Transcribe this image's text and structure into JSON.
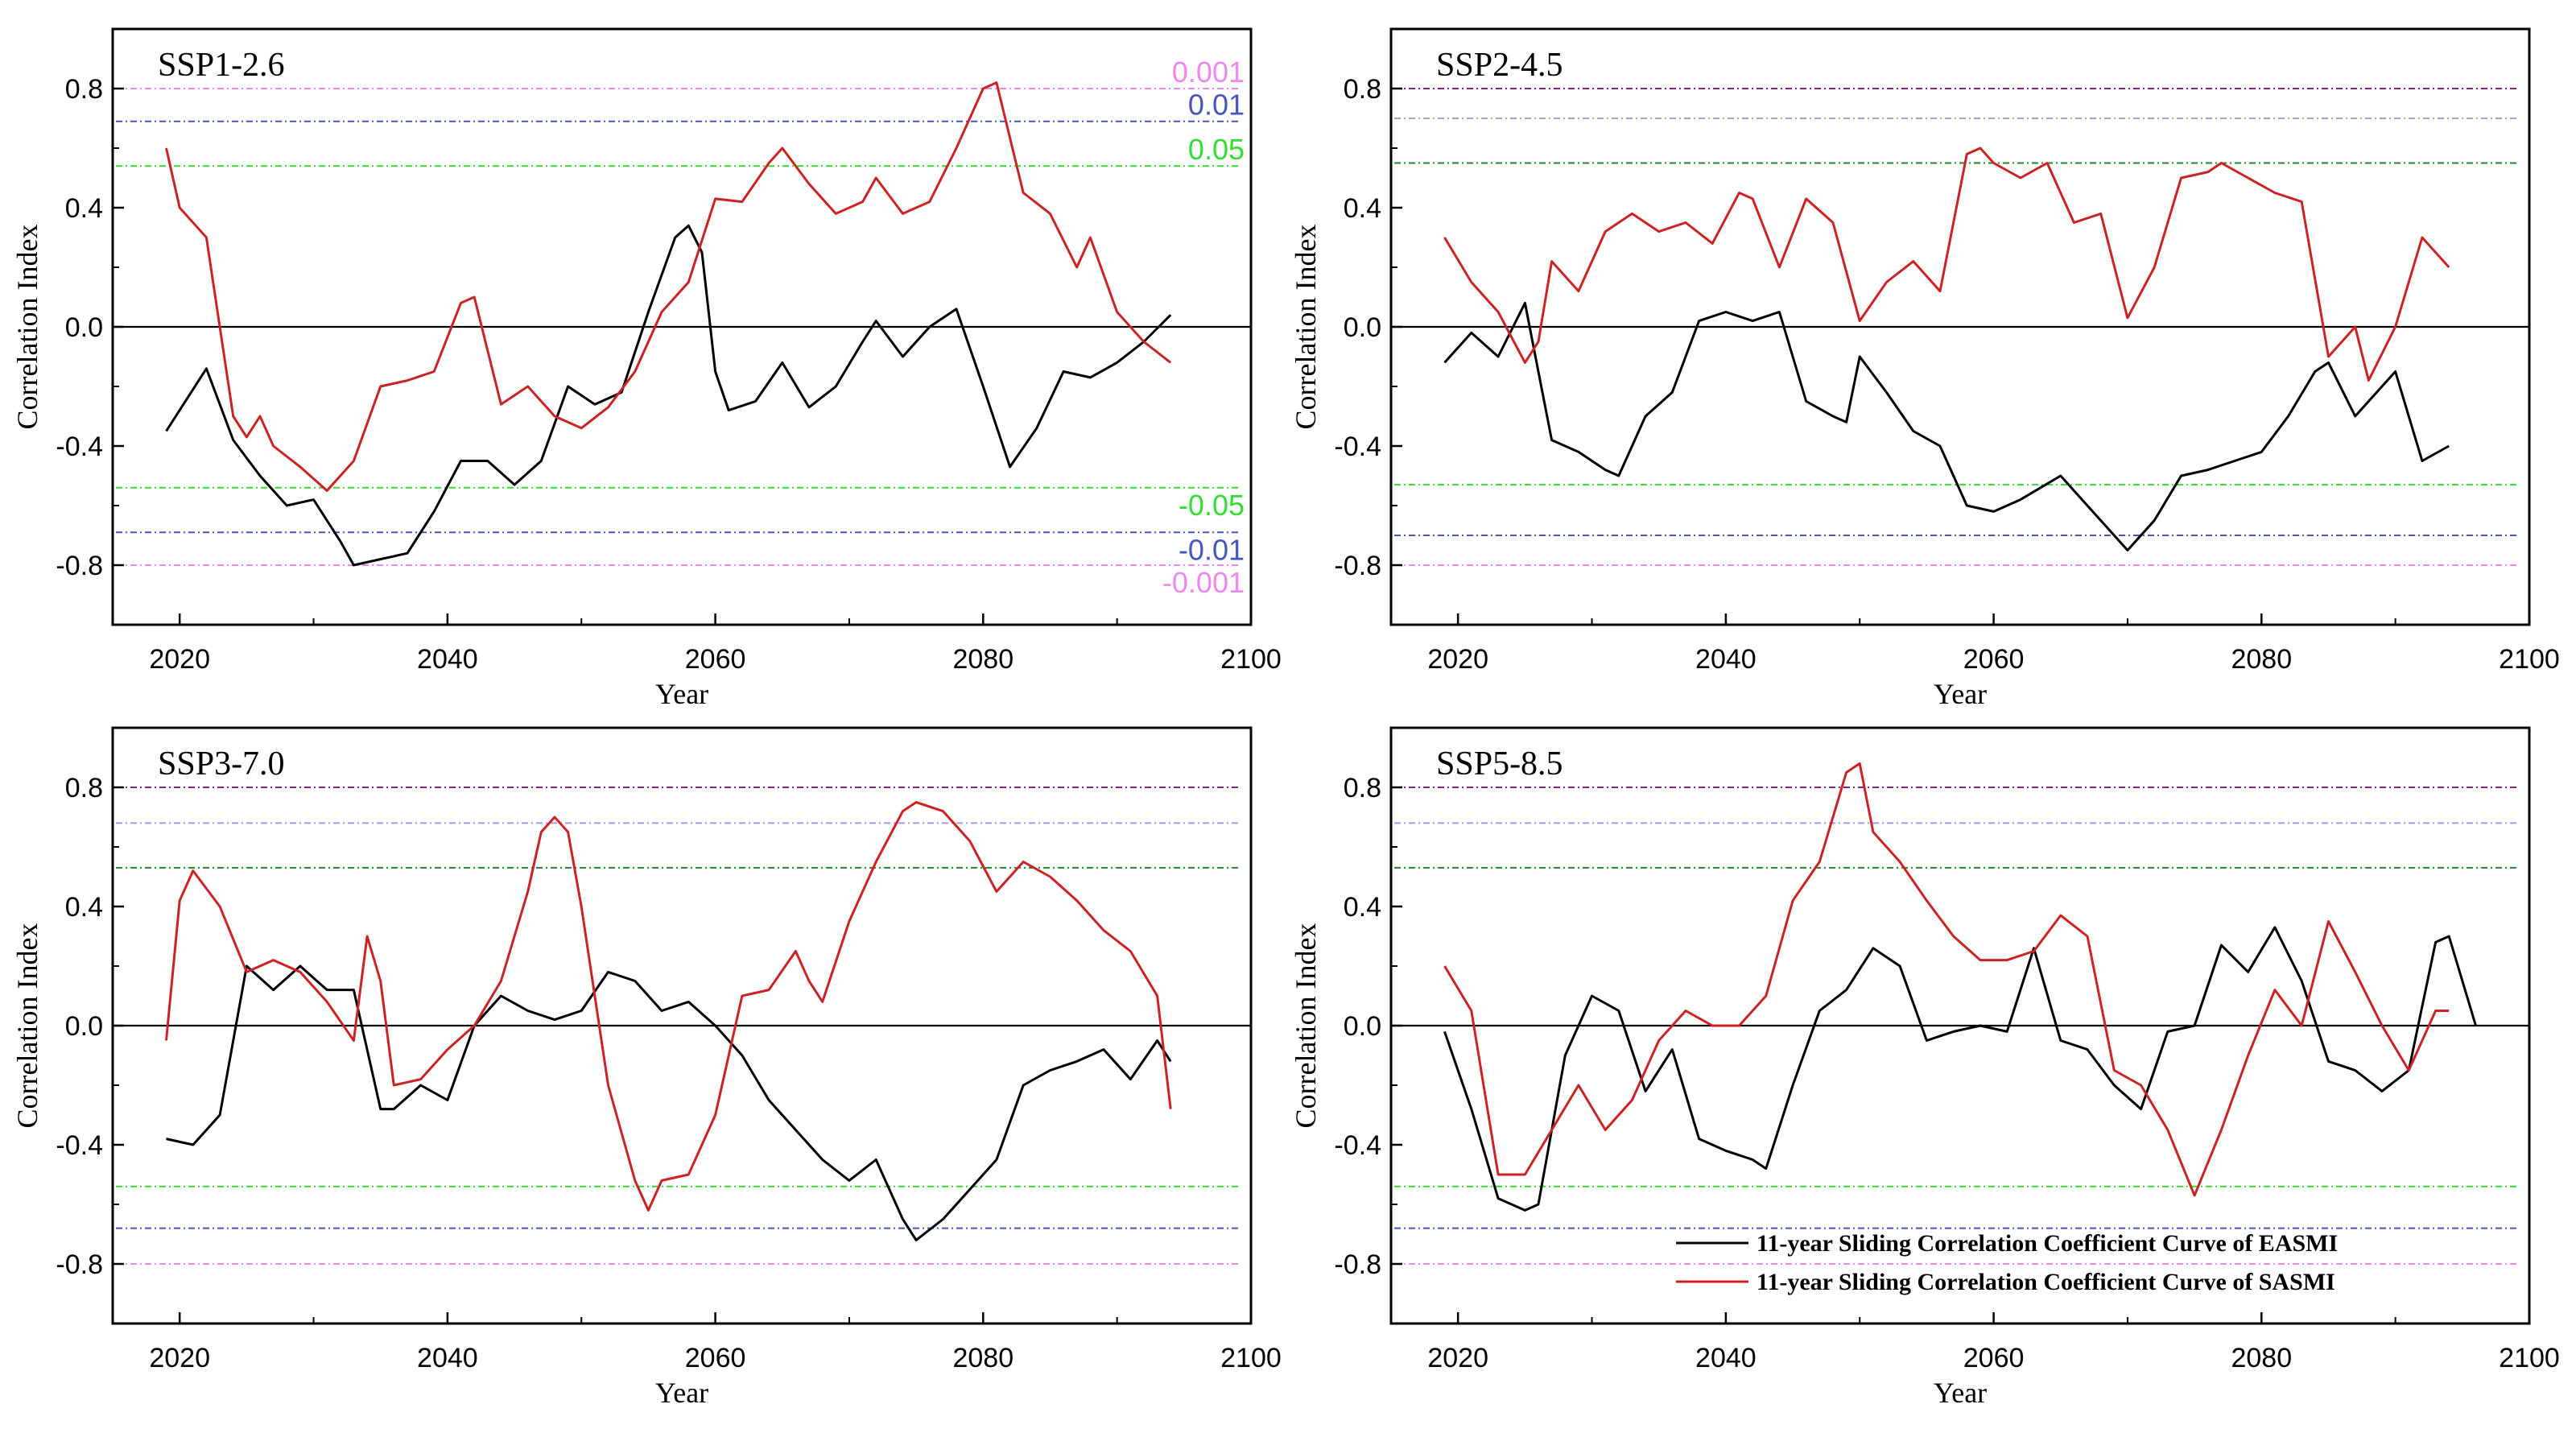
{
  "chart_data": [
    {
      "type": "line",
      "title": "SSP1-2.6",
      "xlabel": "Year",
      "ylabel": "Correlation Index",
      "xlim": [
        2015,
        2100
      ],
      "ylim": [
        -1.0,
        1.0
      ],
      "x_ticks": [
        "2020",
        "2040",
        "2060",
        "2080",
        "2100"
      ],
      "y_ticks": [
        "0.8",
        "0.4",
        "0.0",
        "-0.4",
        "-0.8"
      ],
      "grid": false,
      "reference_lines": [
        {
          "y": 0.8,
          "color": "#ee88ee",
          "label": "0.001"
        },
        {
          "y": 0.69,
          "color": "#4455bb",
          "label": "0.01"
        },
        {
          "y": 0.54,
          "color": "#33dd33",
          "label": "0.05"
        },
        {
          "y": -0.54,
          "color": "#33dd33",
          "label": "-0.05"
        },
        {
          "y": -0.69,
          "color": "#4455bb",
          "label": "-0.01"
        },
        {
          "y": -0.8,
          "color": "#ee88ee",
          "label": "-0.001"
        }
      ],
      "series": [
        {
          "name": "11-year Sliding Correlation Coefficient Curve of  EASMI",
          "color": "#000000",
          "x": [
            2019,
            2022,
            2024,
            2026,
            2028,
            2030,
            2032,
            2033,
            2035,
            2037,
            2039,
            2041,
            2043,
            2045,
            2047,
            2049,
            2051,
            2053,
            2055,
            2057,
            2058,
            2059,
            2060,
            2061,
            2063,
            2065,
            2067,
            2069,
            2071,
            2072,
            2074,
            2076,
            2078,
            2080,
            2082,
            2084,
            2086,
            2088,
            2090,
            2092,
            2094
          ],
          "y": [
            -0.35,
            -0.14,
            -0.38,
            -0.5,
            -0.6,
            -0.58,
            -0.72,
            -0.8,
            -0.78,
            -0.76,
            -0.62,
            -0.45,
            -0.45,
            -0.53,
            -0.45,
            -0.2,
            -0.26,
            -0.22,
            0.05,
            0.3,
            0.34,
            0.25,
            -0.15,
            -0.28,
            -0.25,
            -0.12,
            -0.27,
            -0.2,
            -0.05,
            0.02,
            -0.1,
            0.0,
            0.06,
            -0.2,
            -0.47,
            -0.34,
            -0.15,
            -0.17,
            -0.12,
            -0.05,
            0.04
          ]
        },
        {
          "name": "11-year Sliding Correlation Coefficient Curve of  SASMI",
          "color": "#cc2222",
          "x": [
            2019,
            2020,
            2022,
            2024,
            2025,
            2026,
            2027,
            2029,
            2031,
            2033,
            2035,
            2037,
            2039,
            2041,
            2042,
            2044,
            2046,
            2048,
            2050,
            2052,
            2054,
            2056,
            2058,
            2060,
            2062,
            2064,
            2065,
            2067,
            2069,
            2071,
            2072,
            2074,
            2076,
            2078,
            2080,
            2081,
            2083,
            2085,
            2087,
            2088,
            2090,
            2092,
            2094
          ],
          "y": [
            0.6,
            0.4,
            0.3,
            -0.3,
            -0.37,
            -0.3,
            -0.4,
            -0.47,
            -0.55,
            -0.45,
            -0.2,
            -0.18,
            -0.15,
            0.08,
            0.1,
            -0.26,
            -0.2,
            -0.3,
            -0.34,
            -0.27,
            -0.15,
            0.05,
            0.15,
            0.43,
            0.42,
            0.55,
            0.6,
            0.48,
            0.38,
            0.42,
            0.5,
            0.38,
            0.42,
            0.6,
            0.8,
            0.82,
            0.45,
            0.38,
            0.2,
            0.3,
            0.05,
            -0.05,
            -0.12
          ]
        }
      ]
    },
    {
      "type": "line",
      "title": "SSP2-4.5",
      "xlabel": "Year",
      "ylabel": "Correlation Index",
      "xlim": [
        2015,
        2100
      ],
      "ylim": [
        -1.0,
        1.0
      ],
      "x_ticks": [
        "2020",
        "2040",
        "2060",
        "2080",
        "2100"
      ],
      "y_ticks": [
        "0.8",
        "0.4",
        "0.0",
        "-0.4",
        "-0.8"
      ],
      "grid": false,
      "reference_lines": [
        {
          "y": 0.8,
          "color": "#882288",
          "label": ""
        },
        {
          "y": 0.7,
          "color": "#aa99dd",
          "label": ""
        },
        {
          "y": 0.55,
          "color": "#228822",
          "label": ""
        },
        {
          "y": -0.53,
          "color": "#33dd33",
          "label": ""
        },
        {
          "y": -0.7,
          "color": "#4455bb",
          "label": ""
        },
        {
          "y": -0.8,
          "color": "#ee88ee",
          "label": ""
        }
      ],
      "series": [
        {
          "name": "11-year Sliding Correlation Coefficient Curve of  EASMI",
          "color": "#000000",
          "x": [
            2019,
            2021,
            2023,
            2025,
            2027,
            2029,
            2031,
            2032,
            2034,
            2036,
            2038,
            2040,
            2042,
            2044,
            2046,
            2048,
            2049,
            2050,
            2052,
            2054,
            2056,
            2058,
            2060,
            2062,
            2065,
            2067,
            2069,
            2070,
            2072,
            2074,
            2076,
            2078,
            2080,
            2082,
            2084,
            2085,
            2087,
            2089,
            2090,
            2092,
            2094
          ],
          "y": [
            -0.12,
            -0.02,
            -0.1,
            0.08,
            -0.38,
            -0.42,
            -0.48,
            -0.5,
            -0.3,
            -0.22,
            0.02,
            0.05,
            0.02,
            0.05,
            -0.25,
            -0.3,
            -0.32,
            -0.1,
            -0.22,
            -0.35,
            -0.4,
            -0.6,
            -0.62,
            -0.58,
            -0.5,
            -0.6,
            -0.7,
            -0.75,
            -0.65,
            -0.5,
            -0.48,
            -0.45,
            -0.42,
            -0.3,
            -0.15,
            -0.12,
            -0.3,
            -0.2,
            -0.15,
            -0.45,
            -0.4
          ]
        },
        {
          "name": "11-year Sliding Correlation Coefficient Curve of  SASMI",
          "color": "#cc2222",
          "x": [
            2019,
            2021,
            2023,
            2025,
            2026,
            2027,
            2029,
            2031,
            2033,
            2035,
            2037,
            2039,
            2041,
            2042,
            2044,
            2046,
            2048,
            2050,
            2052,
            2054,
            2056,
            2058,
            2059,
            2060,
            2062,
            2064,
            2066,
            2068,
            2070,
            2072,
            2074,
            2076,
            2077,
            2079,
            2081,
            2083,
            2085,
            2087,
            2088,
            2090,
            2092,
            2094
          ],
          "y": [
            0.3,
            0.15,
            0.05,
            -0.12,
            -0.05,
            0.22,
            0.12,
            0.32,
            0.38,
            0.32,
            0.35,
            0.28,
            0.45,
            0.43,
            0.2,
            0.43,
            0.35,
            0.02,
            0.15,
            0.22,
            0.12,
            0.58,
            0.6,
            0.55,
            0.5,
            0.55,
            0.35,
            0.38,
            0.03,
            0.2,
            0.5,
            0.52,
            0.55,
            0.5,
            0.45,
            0.42,
            -0.1,
            0.0,
            -0.18,
            0.0,
            0.3,
            0.2
          ]
        }
      ]
    },
    {
      "type": "line",
      "title": "SSP3-7.0",
      "xlabel": "Year",
      "ylabel": "Correlation Index",
      "xlim": [
        2015,
        2100
      ],
      "ylim": [
        -1.0,
        1.0
      ],
      "x_ticks": [
        "2020",
        "2040",
        "2060",
        "2080",
        "2100"
      ],
      "y_ticks": [
        "0.8",
        "0.4",
        "0.0",
        "-0.4",
        "-0.8"
      ],
      "grid": false,
      "reference_lines": [
        {
          "y": 0.8,
          "color": "#882288",
          "label": ""
        },
        {
          "y": 0.68,
          "color": "#aa99dd",
          "label": ""
        },
        {
          "y": 0.53,
          "color": "#228822",
          "label": ""
        },
        {
          "y": -0.54,
          "color": "#33dd33",
          "label": ""
        },
        {
          "y": -0.68,
          "color": "#4455bb",
          "label": ""
        },
        {
          "y": -0.8,
          "color": "#ee88ee",
          "label": ""
        }
      ],
      "series": [
        {
          "name": "11-year Sliding Correlation Coefficient Curve of  EASMI",
          "color": "#000000",
          "x": [
            2019,
            2021,
            2023,
            2025,
            2027,
            2029,
            2031,
            2033,
            2035,
            2036,
            2038,
            2040,
            2042,
            2044,
            2046,
            2048,
            2050,
            2052,
            2054,
            2056,
            2058,
            2060,
            2062,
            2064,
            2066,
            2068,
            2070,
            2072,
            2074,
            2075,
            2077,
            2079,
            2081,
            2083,
            2085,
            2087,
            2089,
            2091,
            2093,
            2094
          ],
          "y": [
            -0.38,
            -0.4,
            -0.3,
            0.2,
            0.12,
            0.2,
            0.12,
            0.12,
            -0.28,
            -0.28,
            -0.2,
            -0.25,
            0.0,
            0.1,
            0.05,
            0.02,
            0.05,
            0.18,
            0.15,
            0.05,
            0.08,
            0.0,
            -0.1,
            -0.25,
            -0.35,
            -0.45,
            -0.52,
            -0.45,
            -0.65,
            -0.72,
            -0.65,
            -0.55,
            -0.45,
            -0.2,
            -0.15,
            -0.12,
            -0.08,
            -0.18,
            -0.05,
            -0.12
          ]
        },
        {
          "name": "11-year Sliding Correlation Coefficient Curve of  SASMI",
          "color": "#cc2222",
          "x": [
            2019,
            2020,
            2021,
            2023,
            2025,
            2027,
            2029,
            2031,
            2033,
            2034,
            2035,
            2036,
            2038,
            2040,
            2042,
            2044,
            2046,
            2047,
            2048,
            2049,
            2050,
            2052,
            2054,
            2055,
            2056,
            2058,
            2060,
            2062,
            2064,
            2066,
            2067,
            2068,
            2070,
            2072,
            2074,
            2075,
            2077,
            2079,
            2081,
            2083,
            2085,
            2087,
            2089,
            2091,
            2093,
            2094
          ],
          "y": [
            -0.05,
            0.42,
            0.52,
            0.4,
            0.18,
            0.22,
            0.18,
            0.08,
            -0.05,
            0.3,
            0.15,
            -0.2,
            -0.18,
            -0.08,
            0.0,
            0.15,
            0.45,
            0.65,
            0.7,
            0.65,
            0.4,
            -0.2,
            -0.52,
            -0.62,
            -0.52,
            -0.5,
            -0.3,
            0.1,
            0.12,
            0.25,
            0.15,
            0.08,
            0.35,
            0.55,
            0.72,
            0.75,
            0.72,
            0.62,
            0.45,
            0.55,
            0.5,
            0.42,
            0.32,
            0.25,
            0.1,
            -0.28
          ]
        }
      ]
    },
    {
      "type": "line",
      "title": "SSP5-8.5",
      "xlabel": "Year",
      "ylabel": "Correlation Index",
      "xlim": [
        2015,
        2100
      ],
      "ylim": [
        -1.0,
        1.0
      ],
      "x_ticks": [
        "2020",
        "2040",
        "2060",
        "2080",
        "2100"
      ],
      "y_ticks": [
        "0.8",
        "0.4",
        "0.0",
        "-0.4",
        "-0.8"
      ],
      "grid": false,
      "legend_position": "bottom-right",
      "reference_lines": [
        {
          "y": 0.8,
          "color": "#882288",
          "label": ""
        },
        {
          "y": 0.68,
          "color": "#aa99dd",
          "label": ""
        },
        {
          "y": 0.53,
          "color": "#228822",
          "label": ""
        },
        {
          "y": -0.54,
          "color": "#33dd33",
          "label": ""
        },
        {
          "y": -0.68,
          "color": "#4455bb",
          "label": ""
        },
        {
          "y": -0.8,
          "color": "#ee88ee",
          "label": ""
        }
      ],
      "series": [
        {
          "name": "11-year Sliding Correlation Coefficient Curve of  EASMI",
          "color": "#000000",
          "x": [
            2019,
            2021,
            2023,
            2025,
            2026,
            2028,
            2030,
            2032,
            2034,
            2036,
            2038,
            2040,
            2042,
            2043,
            2045,
            2047,
            2049,
            2051,
            2053,
            2055,
            2057,
            2059,
            2061,
            2063,
            2065,
            2067,
            2069,
            2071,
            2073,
            2075,
            2077,
            2079,
            2081,
            2083,
            2085,
            2087,
            2089,
            2091,
            2093,
            2094,
            2096
          ],
          "y": [
            -0.02,
            -0.28,
            -0.58,
            -0.62,
            -0.6,
            -0.1,
            0.1,
            0.05,
            -0.22,
            -0.08,
            -0.38,
            -0.42,
            -0.45,
            -0.48,
            -0.2,
            0.05,
            0.12,
            0.26,
            0.2,
            -0.05,
            -0.02,
            0.0,
            -0.02,
            0.26,
            -0.05,
            -0.08,
            -0.2,
            -0.28,
            -0.02,
            0.0,
            0.27,
            0.18,
            0.33,
            0.15,
            -0.12,
            -0.15,
            -0.22,
            -0.15,
            0.28,
            0.3,
            0.0
          ]
        },
        {
          "name": "11-year Sliding Correlation Coefficient Curve of  SASMI",
          "color": "#cc2222",
          "x": [
            2019,
            2021,
            2023,
            2025,
            2027,
            2029,
            2031,
            2033,
            2035,
            2037,
            2039,
            2041,
            2043,
            2045,
            2047,
            2049,
            2050,
            2051,
            2053,
            2055,
            2057,
            2059,
            2061,
            2063,
            2065,
            2067,
            2069,
            2071,
            2073,
            2075,
            2077,
            2079,
            2081,
            2083,
            2085,
            2087,
            2089,
            2091,
            2093,
            2094
          ],
          "y": [
            0.2,
            0.05,
            -0.5,
            -0.5,
            -0.35,
            -0.2,
            -0.35,
            -0.25,
            -0.05,
            0.05,
            0.0,
            0.0,
            0.1,
            0.42,
            0.55,
            0.85,
            0.88,
            0.65,
            0.55,
            0.42,
            0.3,
            0.22,
            0.22,
            0.25,
            0.37,
            0.3,
            -0.15,
            -0.2,
            -0.35,
            -0.57,
            -0.35,
            -0.1,
            0.12,
            0.0,
            0.35,
            0.18,
            0.0,
            -0.15,
            0.05,
            0.05
          ]
        }
      ]
    }
  ]
}
